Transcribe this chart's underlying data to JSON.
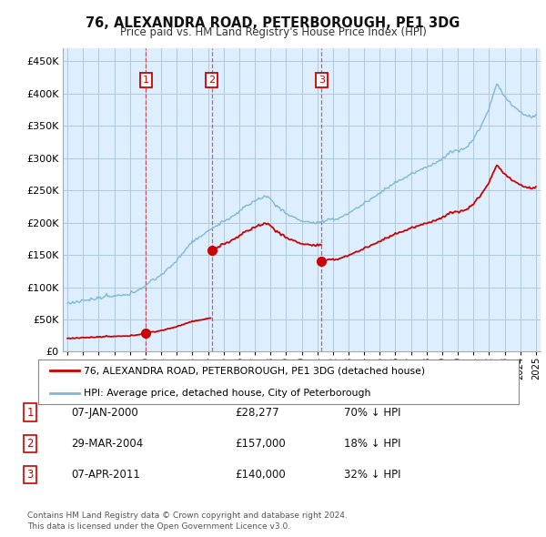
{
  "title": "76, ALEXANDRA ROAD, PETERBOROUGH, PE1 3DG",
  "subtitle": "Price paid vs. HM Land Registry's House Price Index (HPI)",
  "ylim": [
    0,
    470000
  ],
  "yticks": [
    0,
    50000,
    100000,
    150000,
    200000,
    250000,
    300000,
    350000,
    400000,
    450000
  ],
  "ytick_labels": [
    "£0",
    "£50K",
    "£100K",
    "£150K",
    "£200K",
    "£250K",
    "£300K",
    "£350K",
    "£400K",
    "£450K"
  ],
  "hpi_color": "#7db8d8",
  "sale_color": "#cc0000",
  "dashed_line_color": "#cc0000",
  "chart_bg_color": "#ddeeff",
  "background_color": "#ffffff",
  "grid_color": "#b0c8e0",
  "sales": [
    {
      "date_num": 2000.03,
      "price": 28277,
      "label": "1"
    },
    {
      "date_num": 2004.24,
      "price": 157000,
      "label": "2"
    },
    {
      "date_num": 2011.27,
      "price": 140000,
      "label": "3"
    }
  ],
  "legend_entries": [
    "76, ALEXANDRA ROAD, PETERBOROUGH, PE1 3DG (detached house)",
    "HPI: Average price, detached house, City of Peterborough"
  ],
  "table_rows": [
    {
      "num": "1",
      "date": "07-JAN-2000",
      "price": "£28,277",
      "hpi": "70% ↓ HPI"
    },
    {
      "num": "2",
      "date": "29-MAR-2004",
      "price": "£157,000",
      "hpi": "18% ↓ HPI"
    },
    {
      "num": "3",
      "date": "07-APR-2011",
      "price": "£140,000",
      "hpi": "32% ↓ HPI"
    }
  ],
  "footer": "Contains HM Land Registry data © Crown copyright and database right 2024.\nThis data is licensed under the Open Government Licence v3.0."
}
